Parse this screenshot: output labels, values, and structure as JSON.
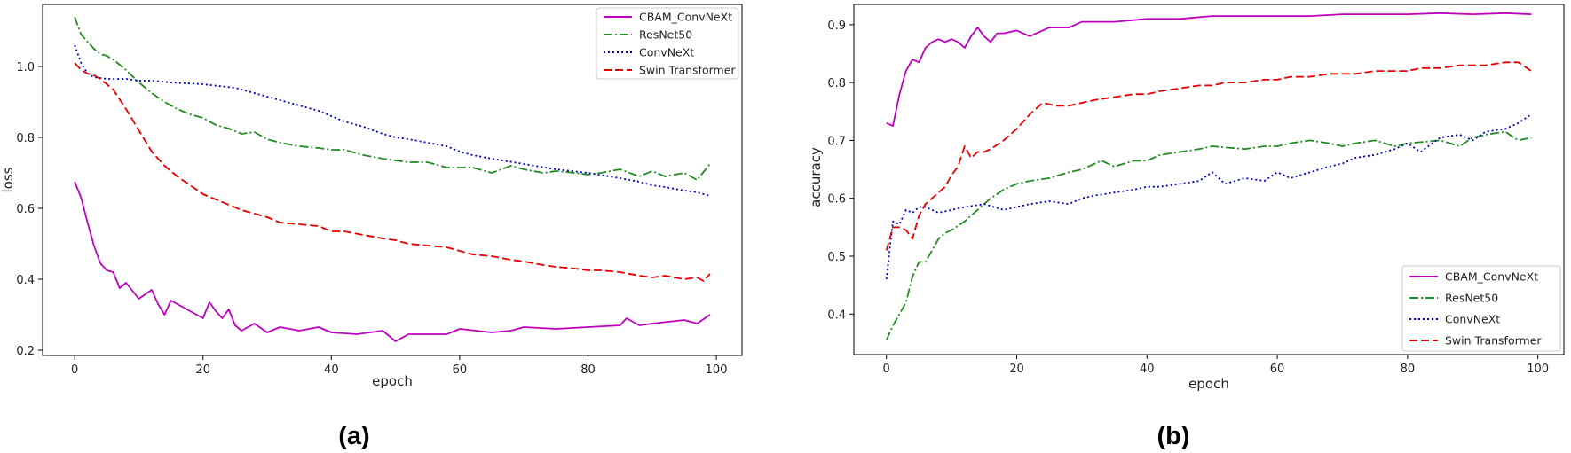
{
  "chart_data": [
    {
      "type": "line",
      "panel_label": "(a)",
      "title": "",
      "xlabel": "epoch",
      "ylabel": "loss",
      "xlim": [
        -5,
        104
      ],
      "ylim": [
        0.185,
        1.175
      ],
      "xticks": [
        0,
        20,
        40,
        60,
        80,
        100
      ],
      "yticks": [
        0.2,
        0.4,
        0.6,
        0.8,
        1.0
      ],
      "grid": false,
      "legend": "top-right",
      "series": [
        {
          "name": "CBAM_ConvNeXt",
          "color": "#bf00bf",
          "dash": "solid",
          "x": [
            0,
            1,
            2,
            3,
            4,
            5,
            6,
            7,
            8,
            10,
            12,
            13,
            14,
            15,
            17,
            19,
            20,
            21,
            22,
            23,
            24,
            25,
            26,
            28,
            30,
            32,
            35,
            38,
            40,
            44,
            48,
            50,
            52,
            55,
            58,
            60,
            65,
            68,
            70,
            75,
            80,
            85,
            86,
            88,
            90,
            95,
            97,
            99
          ],
          "y": [
            0.675,
            0.63,
            0.56,
            0.495,
            0.445,
            0.425,
            0.42,
            0.375,
            0.39,
            0.345,
            0.37,
            0.33,
            0.3,
            0.34,
            0.32,
            0.3,
            0.29,
            0.335,
            0.31,
            0.29,
            0.315,
            0.27,
            0.255,
            0.275,
            0.25,
            0.265,
            0.255,
            0.265,
            0.25,
            0.245,
            0.255,
            0.225,
            0.245,
            0.245,
            0.245,
            0.26,
            0.25,
            0.255,
            0.265,
            0.26,
            0.265,
            0.27,
            0.29,
            0.27,
            0.275,
            0.285,
            0.275,
            0.3
          ]
        },
        {
          "name": "ResNet50",
          "color": "#228b22",
          "dash": "dashdot",
          "x": [
            0,
            1,
            2,
            3,
            4,
            5,
            6,
            7,
            8,
            10,
            12,
            14,
            16,
            18,
            20,
            22,
            24,
            26,
            28,
            30,
            32,
            35,
            38,
            40,
            42,
            45,
            48,
            50,
            52,
            55,
            58,
            60,
            62,
            65,
            68,
            70,
            73,
            75,
            78,
            80,
            82,
            85,
            88,
            90,
            92,
            95,
            97,
            99
          ],
          "y": [
            1.14,
            1.09,
            1.07,
            1.05,
            1.035,
            1.03,
            1.02,
            1.005,
            0.99,
            0.955,
            0.925,
            0.9,
            0.88,
            0.865,
            0.855,
            0.835,
            0.825,
            0.81,
            0.815,
            0.795,
            0.785,
            0.775,
            0.77,
            0.765,
            0.765,
            0.75,
            0.74,
            0.735,
            0.73,
            0.73,
            0.715,
            0.715,
            0.715,
            0.7,
            0.72,
            0.71,
            0.7,
            0.705,
            0.7,
            0.695,
            0.7,
            0.71,
            0.69,
            0.705,
            0.69,
            0.7,
            0.68,
            0.725
          ]
        },
        {
          "name": "ConvNeXt",
          "color": "#0000cc",
          "dash": "dotted",
          "x": [
            0,
            1,
            2,
            3,
            5,
            8,
            10,
            12,
            15,
            20,
            25,
            28,
            30,
            32,
            35,
            38,
            40,
            42,
            45,
            48,
            50,
            52,
            55,
            58,
            60,
            62,
            65,
            70,
            75,
            80,
            85,
            88,
            90,
            92,
            95,
            97,
            99
          ],
          "y": [
            1.06,
            1.01,
            0.98,
            0.97,
            0.965,
            0.965,
            0.96,
            0.96,
            0.955,
            0.95,
            0.94,
            0.925,
            0.915,
            0.905,
            0.89,
            0.875,
            0.86,
            0.845,
            0.83,
            0.81,
            0.8,
            0.795,
            0.785,
            0.775,
            0.76,
            0.75,
            0.74,
            0.725,
            0.71,
            0.7,
            0.685,
            0.675,
            0.665,
            0.66,
            0.65,
            0.645,
            0.635
          ]
        },
        {
          "name": "Swin Transformer",
          "color": "#e60000",
          "dash": "dashed",
          "x": [
            0,
            1,
            2,
            3,
            4,
            5,
            6,
            8,
            10,
            12,
            14,
            16,
            18,
            20,
            22,
            24,
            26,
            28,
            30,
            32,
            35,
            38,
            40,
            42,
            45,
            48,
            50,
            52,
            55,
            58,
            60,
            62,
            65,
            68,
            70,
            73,
            75,
            78,
            80,
            82,
            85,
            88,
            90,
            92,
            95,
            97,
            98,
            99
          ],
          "y": [
            1.01,
            0.99,
            0.98,
            0.975,
            0.965,
            0.95,
            0.935,
            0.88,
            0.82,
            0.76,
            0.72,
            0.69,
            0.665,
            0.64,
            0.625,
            0.61,
            0.595,
            0.585,
            0.575,
            0.56,
            0.555,
            0.55,
            0.535,
            0.535,
            0.525,
            0.515,
            0.51,
            0.5,
            0.495,
            0.49,
            0.48,
            0.47,
            0.465,
            0.455,
            0.45,
            0.44,
            0.435,
            0.43,
            0.425,
            0.425,
            0.42,
            0.41,
            0.405,
            0.41,
            0.4,
            0.405,
            0.395,
            0.415
          ]
        }
      ]
    },
    {
      "type": "line",
      "panel_label": "(b)",
      "title": "",
      "xlabel": "epoch",
      "ylabel": "accuracy",
      "xlim": [
        -5,
        104
      ],
      "ylim": [
        0.33,
        0.935
      ],
      "xticks": [
        0,
        20,
        40,
        60,
        80,
        100
      ],
      "yticks": [
        0.4,
        0.5,
        0.6,
        0.7,
        0.8,
        0.9
      ],
      "grid": false,
      "legend": "lower-right",
      "series": [
        {
          "name": "CBAM_ConvNeXt",
          "color": "#bf00bf",
          "dash": "solid",
          "x": [
            0,
            1,
            2,
            3,
            4,
            5,
            6,
            7,
            8,
            9,
            10,
            11,
            12,
            13,
            14,
            15,
            16,
            17,
            18,
            20,
            22,
            25,
            28,
            30,
            35,
            40,
            45,
            50,
            55,
            60,
            65,
            70,
            75,
            80,
            85,
            90,
            95,
            99
          ],
          "y": [
            0.73,
            0.725,
            0.78,
            0.82,
            0.84,
            0.835,
            0.86,
            0.87,
            0.875,
            0.87,
            0.875,
            0.87,
            0.86,
            0.88,
            0.895,
            0.88,
            0.87,
            0.885,
            0.885,
            0.89,
            0.88,
            0.895,
            0.895,
            0.905,
            0.905,
            0.91,
            0.91,
            0.915,
            0.915,
            0.915,
            0.915,
            0.918,
            0.918,
            0.918,
            0.92,
            0.918,
            0.92,
            0.918
          ]
        },
        {
          "name": "ResNet50",
          "color": "#228b22",
          "dash": "dashdot",
          "x": [
            0,
            1,
            2,
            3,
            4,
            5,
            6,
            7,
            8,
            9,
            10,
            12,
            14,
            16,
            18,
            20,
            22,
            25,
            28,
            30,
            33,
            35,
            38,
            40,
            42,
            45,
            48,
            50,
            55,
            58,
            60,
            62,
            65,
            68,
            70,
            72,
            75,
            78,
            80,
            85,
            88,
            90,
            92,
            95,
            97,
            99
          ],
          "y": [
            0.355,
            0.38,
            0.4,
            0.42,
            0.465,
            0.49,
            0.49,
            0.51,
            0.53,
            0.54,
            0.545,
            0.56,
            0.58,
            0.6,
            0.615,
            0.625,
            0.63,
            0.635,
            0.645,
            0.65,
            0.665,
            0.655,
            0.665,
            0.665,
            0.675,
            0.68,
            0.685,
            0.69,
            0.685,
            0.69,
            0.69,
            0.695,
            0.7,
            0.695,
            0.69,
            0.695,
            0.7,
            0.69,
            0.695,
            0.7,
            0.69,
            0.705,
            0.71,
            0.715,
            0.7,
            0.705
          ]
        },
        {
          "name": "ConvNeXt",
          "color": "#0000cc",
          "dash": "dotted",
          "x": [
            0,
            1,
            2,
            3,
            4,
            5,
            6,
            7,
            8,
            10,
            12,
            15,
            18,
            20,
            22,
            25,
            28,
            30,
            32,
            35,
            38,
            40,
            42,
            45,
            48,
            50,
            52,
            55,
            58,
            60,
            62,
            65,
            68,
            70,
            72,
            75,
            78,
            80,
            82,
            85,
            88,
            90,
            92,
            95,
            97,
            99
          ],
          "y": [
            0.46,
            0.56,
            0.555,
            0.58,
            0.575,
            0.585,
            0.585,
            0.58,
            0.575,
            0.58,
            0.585,
            0.59,
            0.58,
            0.585,
            0.59,
            0.595,
            0.59,
            0.6,
            0.605,
            0.61,
            0.615,
            0.62,
            0.62,
            0.625,
            0.63,
            0.645,
            0.625,
            0.635,
            0.63,
            0.645,
            0.635,
            0.645,
            0.655,
            0.66,
            0.67,
            0.675,
            0.685,
            0.695,
            0.68,
            0.705,
            0.71,
            0.7,
            0.715,
            0.72,
            0.73,
            0.745
          ]
        },
        {
          "name": "Swin Transformer",
          "color": "#e60000",
          "dash": "dashed",
          "x": [
            0,
            1,
            2,
            3,
            4,
            5,
            6,
            7,
            8,
            9,
            10,
            11,
            12,
            13,
            14,
            15,
            16,
            18,
            20,
            22,
            24,
            26,
            28,
            30,
            32,
            35,
            38,
            40,
            42,
            45,
            48,
            50,
            52,
            55,
            58,
            60,
            62,
            65,
            68,
            70,
            72,
            75,
            78,
            80,
            82,
            85,
            88,
            90,
            92,
            95,
            97,
            99
          ],
          "y": [
            0.51,
            0.55,
            0.55,
            0.545,
            0.53,
            0.57,
            0.59,
            0.6,
            0.61,
            0.62,
            0.64,
            0.655,
            0.69,
            0.67,
            0.68,
            0.68,
            0.685,
            0.7,
            0.72,
            0.745,
            0.765,
            0.76,
            0.76,
            0.765,
            0.77,
            0.775,
            0.78,
            0.78,
            0.785,
            0.79,
            0.795,
            0.795,
            0.8,
            0.8,
            0.805,
            0.805,
            0.81,
            0.81,
            0.815,
            0.815,
            0.815,
            0.82,
            0.82,
            0.82,
            0.825,
            0.825,
            0.83,
            0.83,
            0.83,
            0.835,
            0.835,
            0.82
          ]
        }
      ]
    }
  ]
}
